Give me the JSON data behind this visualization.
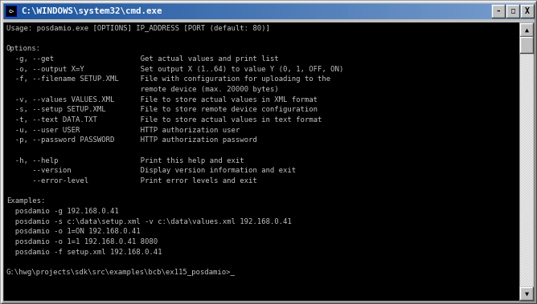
{
  "title_bar_text": "C:\\WINDOWS\\system32\\cmd.exe",
  "title_bar_bg_left": "#3a6ea5",
  "title_bar_bg_right": "#6b9fcf",
  "title_bar_text_color": "#ffffff",
  "window_bg": "#000000",
  "text_color": "#c0c0c0",
  "content_lines": [
    "Usage: posdamio.exe [OPTIONS] IP_ADDRESS [PORT (default: 80)]",
    "",
    "Options:",
    "  -g, --get                    Get actual values and print list",
    "  -o, --output X=Y             Set output X (1..64) to value Y (0, 1, OFF, ON)",
    "  -f, --filename SETUP.XML     File with configuration for uploading to the",
    "                               remote device (max. 20000 bytes)",
    "  -v, --values VALUES.XML      File to store actual values in XML format",
    "  -s, --setup SETUP.XML        File to store remote device configuration",
    "  -t, --text DATA.TXT          File to store actual values in text format",
    "  -u, --user USER              HTTP authorization user",
    "  -p, --password PASSWORD      HTTP authorization password",
    "",
    "  -h, --help                   Print this help and exit",
    "      --version                Display version information and exit",
    "      --error-level            Print error levels and exit",
    "",
    "Examples:",
    "  posdamio -g 192.168.0.41",
    "  posdamio -s c:\\data\\setup.xml -v c:\\data\\values.xml 192.168.0.41",
    "  posdamio -o 1=ON 192.168.0.41",
    "  posdamio -o 1=1 192.168.0.41 8080",
    "  posdamio -f setup.xml 192.168.0.41",
    "",
    "G:\\hwg\\projects\\sdk\\src\\examples\\bcb\\ex115_posdamio>_"
  ],
  "figsize": [
    6.68,
    3.79
  ],
  "dpi": 100,
  "font_size": 6.5,
  "title_font_size": 7.8
}
